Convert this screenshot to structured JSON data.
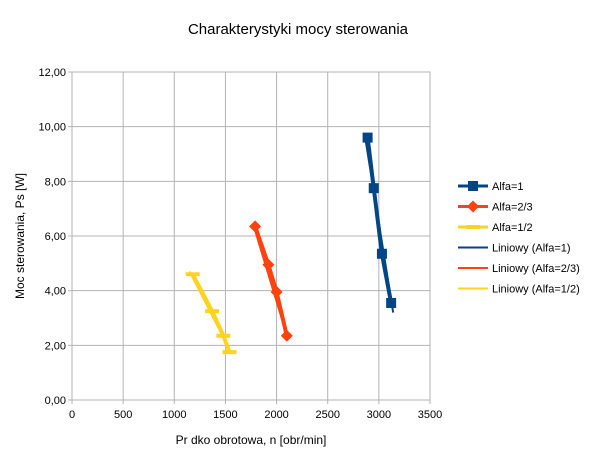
{
  "chart_data": {
    "type": "scatter",
    "title": "Charakterystyki mocy sterowania",
    "xlabel": "Pr  dko     obrotowa, n [obr/min]",
    "ylabel": "Moc sterowania, Ps [W]",
    "xlim": [
      0,
      3500
    ],
    "ylim": [
      0,
      12
    ],
    "x_ticks": [
      "0",
      "500",
      "1000",
      "1500",
      "2000",
      "2500",
      "3000",
      "3500"
    ],
    "x_tick_values": [
      0,
      500,
      1000,
      1500,
      2000,
      2500,
      3000,
      3500
    ],
    "y_ticks": [
      "0,00",
      "2,00",
      "4,00",
      "6,00",
      "8,00",
      "10,00",
      "12,00"
    ],
    "y_tick_values": [
      0,
      2,
      4,
      6,
      8,
      10,
      12
    ],
    "grid": {
      "x": true,
      "y": true
    },
    "legend_position": "right",
    "series": [
      {
        "name": "Alfa=1",
        "kind": "marker-line",
        "marker": "square",
        "color": "#004586",
        "points": [
          [
            2890,
            9.6
          ],
          [
            2950,
            7.75
          ],
          [
            3030,
            5.35
          ],
          [
            3120,
            3.55
          ]
        ]
      },
      {
        "name": "Alfa=2/3",
        "kind": "marker-line",
        "marker": "diamond",
        "color": "#ff420e",
        "points": [
          [
            1790,
            6.35
          ],
          [
            1920,
            4.95
          ],
          [
            2000,
            3.95
          ],
          [
            2100,
            2.35
          ]
        ]
      },
      {
        "name": "Alfa=1/2",
        "kind": "marker-line",
        "marker": "dash",
        "color": "#ffd320",
        "points": [
          [
            1180,
            4.6
          ],
          [
            1370,
            3.25
          ],
          [
            1480,
            2.35
          ],
          [
            1540,
            1.75
          ]
        ]
      },
      {
        "name": "Liniowy (Alfa=1)",
        "kind": "trend",
        "color": "#004586",
        "points": [
          [
            2860,
            9.75
          ],
          [
            3140,
            3.2
          ]
        ]
      },
      {
        "name": "Liniowy (Alfa=2/3)",
        "kind": "trend",
        "color": "#ff420e",
        "points": [
          [
            1770,
            6.45
          ],
          [
            2110,
            2.25
          ]
        ]
      },
      {
        "name": "Liniowy (Alfa=1/2)",
        "kind": "trend",
        "color": "#ffd320",
        "points": [
          [
            1150,
            4.7
          ],
          [
            1560,
            1.7
          ]
        ]
      }
    ]
  }
}
